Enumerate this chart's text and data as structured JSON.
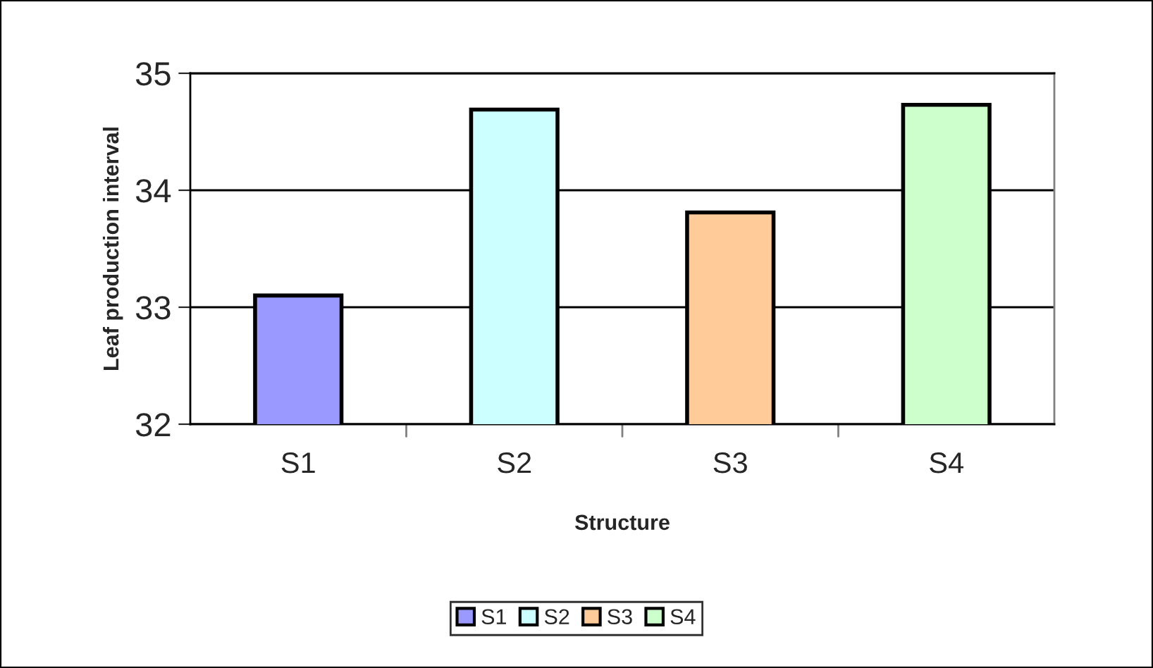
{
  "chart_data": {
    "type": "bar",
    "xlabel": "Structure",
    "ylabel": "Leaf production interval",
    "categories": [
      "S1",
      "S2",
      "S3",
      "S4"
    ],
    "series": [
      {
        "name": "S1",
        "color": "#9999ff",
        "values": [
          33.1,
          null,
          null,
          null
        ]
      },
      {
        "name": "S2",
        "color": "#ccffff",
        "values": [
          null,
          34.69,
          null,
          null
        ]
      },
      {
        "name": "S3",
        "color": "#ffcc99",
        "values": [
          null,
          null,
          33.81,
          null
        ]
      },
      {
        "name": "S4",
        "color": "#ccffcc",
        "values": [
          null,
          null,
          null,
          34.73
        ]
      }
    ],
    "ylim": [
      32,
      35
    ],
    "yticks": [
      32,
      33,
      34,
      35
    ],
    "grid": "y",
    "legend": "bottom"
  }
}
